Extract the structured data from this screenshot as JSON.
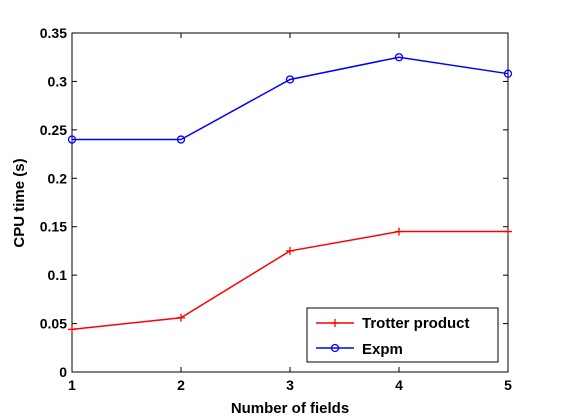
{
  "chart_data": {
    "type": "line",
    "title": "",
    "xlabel": "Number of fields",
    "ylabel": "CPU time (s)",
    "xlim": [
      1,
      5
    ],
    "ylim": [
      0,
      0.35
    ],
    "x_ticks": [
      "1",
      "2",
      "3",
      "4",
      "5"
    ],
    "y_ticks": [
      "0",
      "0.05",
      "0.1",
      "0.15",
      "0.2",
      "0.25",
      "0.3",
      "0.35"
    ],
    "grid": false,
    "legend_position": "bottom-right",
    "x": [
      1,
      2,
      3,
      4,
      5
    ],
    "series": [
      {
        "name": "Trotter product",
        "values": [
          0.044,
          0.056,
          0.125,
          0.145,
          0.145
        ],
        "color": "#ff0000",
        "marker": "plus"
      },
      {
        "name": "Expm",
        "values": [
          0.24,
          0.24,
          0.302,
          0.325,
          0.308
        ],
        "color": "#0000ff",
        "marker": "circle"
      }
    ]
  }
}
